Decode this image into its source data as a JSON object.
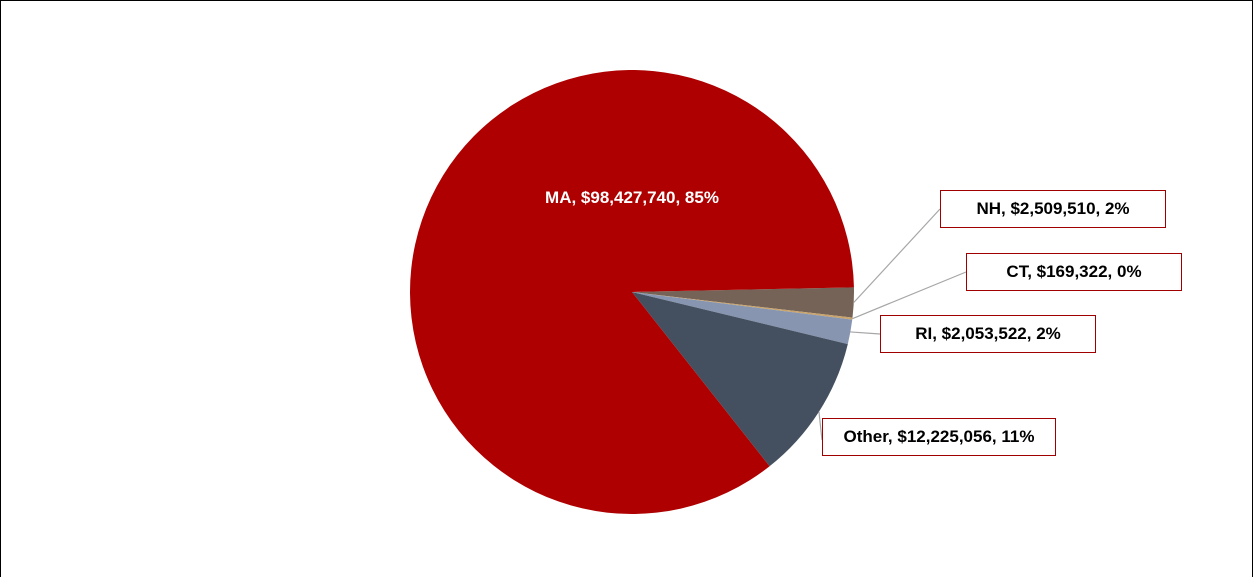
{
  "chart_data": {
    "type": "pie",
    "categories": [
      "NH",
      "CT",
      "RI",
      "Other",
      "MA"
    ],
    "values": [
      2509510,
      169322,
      2053522,
      12225056,
      98427740
    ],
    "value_labels": [
      "NH, $2,509,510, 2%",
      "CT, $169,322, 0%",
      "RI, $2,053,522, 2%",
      "Other, $12,225,056, 11%",
      "MA, $98,427,740, 85%"
    ],
    "colors": [
      "#766357",
      "#c9a46b",
      "#8795b0",
      "#44505f",
      "#ae0000"
    ]
  }
}
